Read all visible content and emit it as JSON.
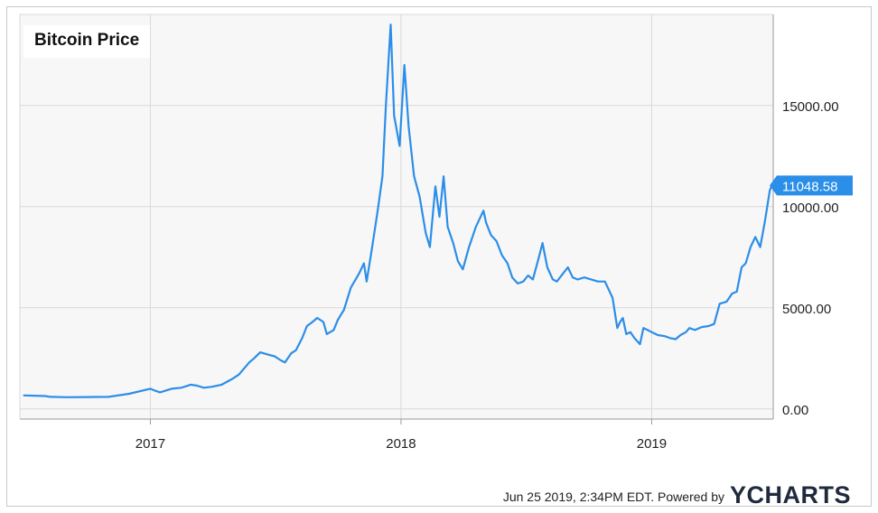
{
  "chart_data": {
    "type": "line",
    "title": "Bitcoin Price",
    "xlabel": "",
    "ylabel": "",
    "x_ticks": [
      "2017",
      "2018",
      "2019"
    ],
    "y_ticks": [
      "0.00",
      "5000.00",
      "15000.00"
    ],
    "ylim": [
      -500,
      19500
    ],
    "grid": true,
    "last_value_label": "11048.58",
    "series": [
      {
        "color": "#2b8ee8",
        "x": [
          "2016-07-01",
          "2016-08-01",
          "2016-08-08",
          "2016-09-01",
          "2016-10-01",
          "2016-11-01",
          "2016-12-01",
          "2017-01-01",
          "2017-01-08",
          "2017-01-15",
          "2017-02-01",
          "2017-02-15",
          "2017-03-01",
          "2017-03-10",
          "2017-03-20",
          "2017-04-01",
          "2017-04-15",
          "2017-05-01",
          "2017-05-10",
          "2017-05-20",
          "2017-05-25",
          "2017-06-01",
          "2017-06-10",
          "2017-06-20",
          "2017-07-01",
          "2017-07-10",
          "2017-07-16",
          "2017-07-25",
          "2017-08-01",
          "2017-08-10",
          "2017-08-17",
          "2017-08-25",
          "2017-09-01",
          "2017-09-10",
          "2017-09-15",
          "2017-09-25",
          "2017-10-01",
          "2017-10-10",
          "2017-10-20",
          "2017-11-01",
          "2017-11-08",
          "2017-11-12",
          "2017-11-20",
          "2017-11-28",
          "2017-12-05",
          "2017-12-10",
          "2017-12-17",
          "2017-12-22",
          "2017-12-30",
          "2018-01-06",
          "2018-01-12",
          "2018-01-20",
          "2018-01-28",
          "2018-02-06",
          "2018-02-12",
          "2018-02-20",
          "2018-02-26",
          "2018-03-04",
          "2018-03-10",
          "2018-03-18",
          "2018-03-25",
          "2018-04-01",
          "2018-04-10",
          "2018-04-20",
          "2018-05-01",
          "2018-05-05",
          "2018-05-12",
          "2018-05-20",
          "2018-05-28",
          "2018-06-05",
          "2018-06-12",
          "2018-06-20",
          "2018-06-28",
          "2018-07-05",
          "2018-07-12",
          "2018-07-20",
          "2018-07-26",
          "2018-08-02",
          "2018-08-10",
          "2018-08-16",
          "2018-08-25",
          "2018-09-01",
          "2018-09-08",
          "2018-09-15",
          "2018-09-25",
          "2018-10-05",
          "2018-10-15",
          "2018-10-25",
          "2018-11-05",
          "2018-11-12",
          "2018-11-16",
          "2018-11-20",
          "2018-11-25",
          "2018-12-01",
          "2018-12-07",
          "2018-12-15",
          "2018-12-20",
          "2018-12-26",
          "2019-01-01",
          "2019-01-10",
          "2019-01-20",
          "2019-01-28",
          "2019-02-05",
          "2019-02-12",
          "2019-02-20",
          "2019-02-25",
          "2019-03-05",
          "2019-03-15",
          "2019-03-25",
          "2019-04-02",
          "2019-04-10",
          "2019-04-20",
          "2019-04-28",
          "2019-05-05",
          "2019-05-12",
          "2019-05-18",
          "2019-05-25",
          "2019-06-01",
          "2019-06-08",
          "2019-06-15",
          "2019-06-22",
          "2019-06-25"
        ],
        "y": [
          670,
          640,
          600,
          580,
          590,
          600,
          750,
          1000,
          900,
          820,
          1000,
          1050,
          1200,
          1150,
          1050,
          1100,
          1200,
          1500,
          1700,
          2100,
          2300,
          2500,
          2800,
          2700,
          2600,
          2400,
          2300,
          2750,
          2900,
          3500,
          4100,
          4300,
          4500,
          4300,
          3700,
          3900,
          4400,
          4900,
          6000,
          6700,
          7200,
          6300,
          8000,
          9800,
          11500,
          15000,
          19000,
          14500,
          13000,
          17000,
          14000,
          11500,
          10500,
          8700,
          8000,
          11000,
          9500,
          11500,
          9000,
          8200,
          7300,
          6900,
          8000,
          9000,
          9800,
          9200,
          8600,
          8300,
          7600,
          7200,
          6500,
          6200,
          6300,
          6600,
          6400,
          7400,
          8200,
          7000,
          6400,
          6300,
          6700,
          7000,
          6500,
          6400,
          6500,
          6400,
          6300,
          6300,
          5500,
          4000,
          4300,
          4500,
          3700,
          3800,
          3500,
          3200,
          4000,
          3900,
          3800,
          3650,
          3600,
          3500,
          3450,
          3650,
          3800,
          4000,
          3900,
          4050,
          4100,
          4200,
          5200,
          5300,
          5700,
          5800,
          7000,
          7200,
          8000,
          8500,
          8000,
          9300,
          10800,
          11048
        ]
      }
    ],
    "footer_text": "Jun 25 2019, 2:34PM EDT.  Powered by",
    "logo_text": "YCHARTS",
    "colors": {
      "line": "#2b8ee8",
      "plot_bg": "#f7f7f7",
      "grid": "#d9d9d9",
      "value_badge": "#2b8ee8"
    }
  }
}
